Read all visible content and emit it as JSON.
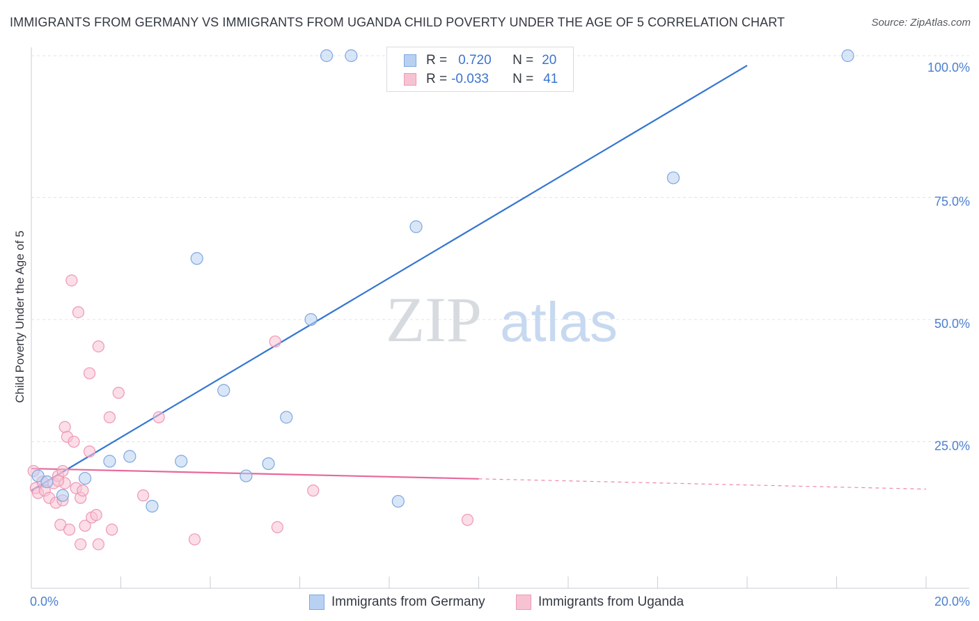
{
  "title": "IMMIGRANTS FROM GERMANY VS IMMIGRANTS FROM UGANDA CHILD POVERTY UNDER THE AGE OF 5 CORRELATION CHART",
  "source": "Source: ZipAtlas.com",
  "watermark": {
    "zip": "ZIP",
    "atlas": "atlas"
  },
  "legend": {
    "germany": {
      "r_label": "R =",
      "r_value": "0.720",
      "n_label": "N =",
      "n_value": "20"
    },
    "uganda": {
      "r_label": "R =",
      "r_value": "-0.033",
      "n_label": "N =",
      "n_value": "41"
    }
  },
  "colors": {
    "germany_fill": "#b8d1f3",
    "germany_stroke": "#7ea7de",
    "germany_line": "#3476d0",
    "uganda_fill": "#f7c3d3",
    "uganda_stroke": "#ee97b5",
    "uganda_line": "#e8679a",
    "axis_text": "#4a7fd0",
    "grid": "#dfe3e8"
  },
  "chart_data": {
    "type": "scatter",
    "title": "IMMIGRANTS FROM GERMANY VS IMMIGRANTS FROM UGANDA CHILD POVERTY UNDER THE AGE OF 5 CORRELATION CHART",
    "xlabel": "",
    "ylabel": "Child Poverty Under the Age of 5",
    "xlim": [
      0,
      20
    ],
    "ylim": [
      0,
      100
    ],
    "x_tick_labels": [
      "0.0%",
      "20.0%"
    ],
    "y_tick_labels": [
      "25.0%",
      "50.0%",
      "75.0%",
      "100.0%"
    ],
    "y_ticks": [
      25,
      50,
      75,
      100
    ],
    "series": [
      {
        "name": "Immigrants from Germany",
        "r": 0.72,
        "n": 20,
        "trend": {
          "x": [
            0,
            16
          ],
          "y": [
            15,
            102
          ],
          "dash_from_x": null
        },
        "points": [
          {
            "x": 0.15,
            "y": 18.0
          },
          {
            "x": 0.35,
            "y": 16.8
          },
          {
            "x": 0.7,
            "y": 14.0
          },
          {
            "x": 1.2,
            "y": 17.5
          },
          {
            "x": 1.75,
            "y": 21.0
          },
          {
            "x": 2.2,
            "y": 22.0
          },
          {
            "x": 2.7,
            "y": 11.8
          },
          {
            "x": 3.35,
            "y": 21.0
          },
          {
            "x": 3.7,
            "y": 62.5
          },
          {
            "x": 4.3,
            "y": 35.5
          },
          {
            "x": 4.8,
            "y": 18.0
          },
          {
            "x": 5.3,
            "y": 20.5
          },
          {
            "x": 5.7,
            "y": 30.0
          },
          {
            "x": 6.25,
            "y": 50.0
          },
          {
            "x": 6.6,
            "y": 102.0
          },
          {
            "x": 7.15,
            "y": 102.0
          },
          {
            "x": 8.2,
            "y": 12.8
          },
          {
            "x": 8.6,
            "y": 69.0
          },
          {
            "x": 14.35,
            "y": 79.0
          },
          {
            "x": 18.25,
            "y": 102.0
          }
        ]
      },
      {
        "name": "Immigrants from Uganda",
        "r": -0.033,
        "n": 41,
        "trend": {
          "x": [
            0,
            20
          ],
          "y": [
            19.5,
            15.3
          ],
          "dash_from_x": 10
        },
        "points": [
          {
            "x": 0.05,
            "y": 19.0
          },
          {
            "x": 0.1,
            "y": 15.5
          },
          {
            "x": 0.15,
            "y": 14.5
          },
          {
            "x": 0.25,
            "y": 16.8
          },
          {
            "x": 0.3,
            "y": 15.0
          },
          {
            "x": 0.4,
            "y": 13.5
          },
          {
            "x": 0.5,
            "y": 16.5
          },
          {
            "x": 0.55,
            "y": 12.5
          },
          {
            "x": 0.6,
            "y": 18.0
          },
          {
            "x": 0.65,
            "y": 8.0
          },
          {
            "x": 0.7,
            "y": 19.0
          },
          {
            "x": 0.75,
            "y": 16.5
          },
          {
            "x": 0.7,
            "y": 13.0
          },
          {
            "x": 0.75,
            "y": 28.0
          },
          {
            "x": 0.8,
            "y": 26.0
          },
          {
            "x": 0.85,
            "y": 7.0
          },
          {
            "x": 0.9,
            "y": 58.0
          },
          {
            "x": 0.95,
            "y": 25.0
          },
          {
            "x": 1.0,
            "y": 15.5
          },
          {
            "x": 1.05,
            "y": 51.5
          },
          {
            "x": 1.1,
            "y": 4.0
          },
          {
            "x": 1.1,
            "y": 13.5
          },
          {
            "x": 1.15,
            "y": 15.0
          },
          {
            "x": 1.2,
            "y": 7.8
          },
          {
            "x": 1.3,
            "y": 39.0
          },
          {
            "x": 1.3,
            "y": 23.0
          },
          {
            "x": 1.35,
            "y": 9.5
          },
          {
            "x": 1.45,
            "y": 10.0
          },
          {
            "x": 1.5,
            "y": 4.0
          },
          {
            "x": 1.5,
            "y": 44.5
          },
          {
            "x": 1.75,
            "y": 30.0
          },
          {
            "x": 1.8,
            "y": 7.0
          },
          {
            "x": 1.95,
            "y": 35.0
          },
          {
            "x": 2.5,
            "y": 14.0
          },
          {
            "x": 2.85,
            "y": 30.0
          },
          {
            "x": 3.65,
            "y": 5.0
          },
          {
            "x": 5.45,
            "y": 45.5
          },
          {
            "x": 5.5,
            "y": 7.5
          },
          {
            "x": 6.3,
            "y": 15.0
          },
          {
            "x": 9.75,
            "y": 9.0
          },
          {
            "x": 0.6,
            "y": 17.0
          }
        ]
      }
    ]
  }
}
